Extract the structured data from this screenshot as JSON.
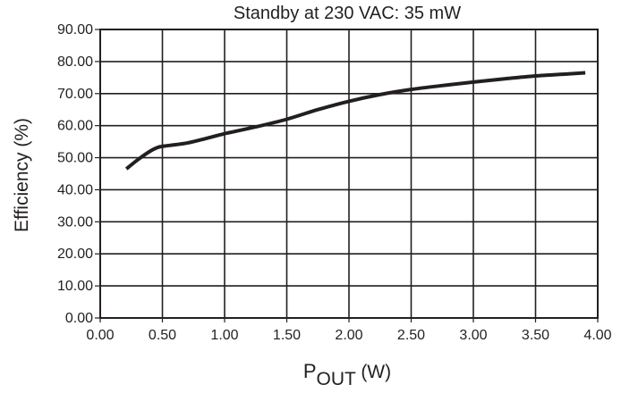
{
  "chart_data": {
    "type": "line",
    "title": "Standby at 230 VAC: 35 mW",
    "xlabel_main": "P",
    "xlabel_sub": "OUT",
    "xlabel_unit": " (W)",
    "ylabel": "Efficiency (%)",
    "xlim": [
      0,
      4
    ],
    "ylim": [
      0,
      90
    ],
    "grid": true,
    "x_ticks": [
      0,
      0.5,
      1,
      1.5,
      2,
      2.5,
      3,
      3.5,
      4
    ],
    "x_tick_labels": [
      "0.00",
      "0.50",
      "1.00",
      "1.50",
      "2.00",
      "2.50",
      "3.00",
      "3.50",
      "4.00"
    ],
    "y_ticks": [
      0,
      10,
      20,
      30,
      40,
      50,
      60,
      70,
      80,
      90
    ],
    "y_tick_labels": [
      "0.00",
      "10.00",
      "20.00",
      "30.00",
      "40.00",
      "50.00",
      "60.00",
      "70.00",
      "80.00",
      "90.00"
    ],
    "series": [
      {
        "name": "Efficiency",
        "color": "#231f20",
        "x": [
          0.21,
          0.3,
          0.4,
          0.47,
          0.55,
          0.7,
          0.85,
          1.0,
          1.25,
          1.5,
          1.75,
          2.0,
          2.25,
          2.5,
          2.75,
          3.0,
          3.25,
          3.5,
          3.75,
          3.9
        ],
        "y": [
          46.5,
          49.3,
          52.0,
          53.3,
          53.8,
          54.6,
          56.0,
          57.5,
          59.6,
          62.0,
          65.0,
          67.6,
          69.7,
          71.3,
          72.5,
          73.6,
          74.6,
          75.5,
          76.1,
          76.5
        ]
      }
    ]
  }
}
